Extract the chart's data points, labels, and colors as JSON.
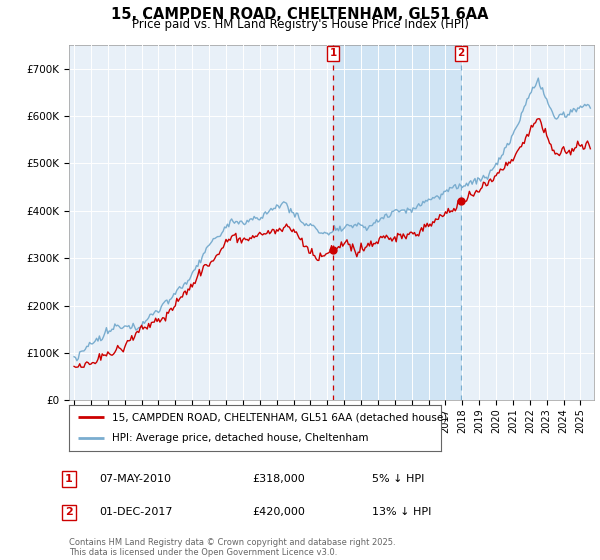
{
  "title": "15, CAMPDEN ROAD, CHELTENHAM, GL51 6AA",
  "subtitle": "Price paid vs. HM Land Registry's House Price Index (HPI)",
  "legend_line1": "15, CAMPDEN ROAD, CHELTENHAM, GL51 6AA (detached house)",
  "legend_line2": "HPI: Average price, detached house, Cheltenham",
  "annotation1_date": "07-MAY-2010",
  "annotation1_price": "£318,000",
  "annotation1_hpi": "5% ↓ HPI",
  "annotation1_year": 2010.35,
  "annotation1_value": 318000,
  "annotation2_date": "01-DEC-2017",
  "annotation2_price": "£420,000",
  "annotation2_hpi": "13% ↓ HPI",
  "annotation2_year": 2017.92,
  "annotation2_value": 420000,
  "footer": "Contains HM Land Registry data © Crown copyright and database right 2025.\nThis data is licensed under the Open Government Licence v3.0.",
  "line_color_property": "#cc0000",
  "line_color_hpi": "#7aadcf",
  "background_color": "#e8f0f8",
  "shade_color": "#d0e4f4",
  "ylim": [
    0,
    750000
  ],
  "yticks": [
    0,
    100000,
    200000,
    300000,
    400000,
    500000,
    600000,
    700000
  ],
  "xlim_start": 1994.7,
  "xlim_end": 2025.8
}
